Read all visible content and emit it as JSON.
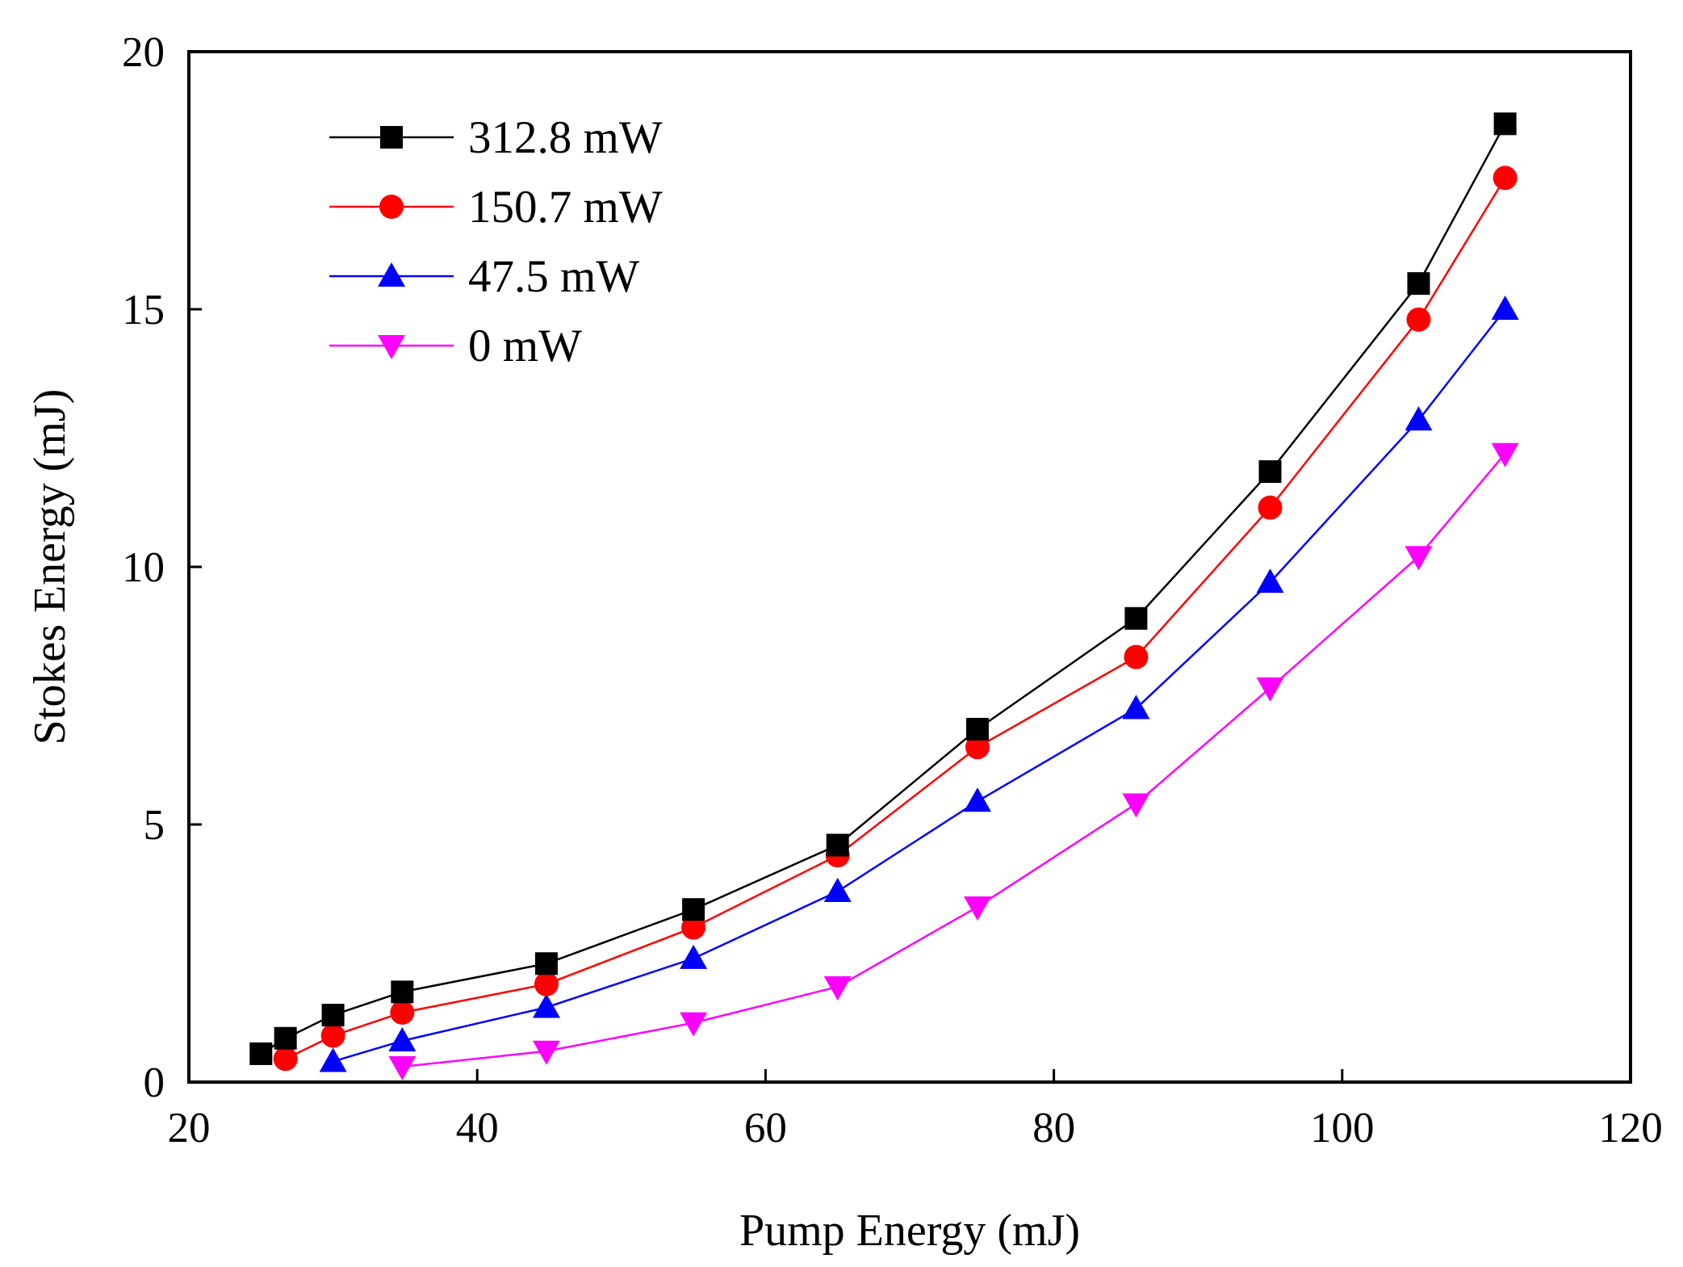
{
  "chart_data": {
    "type": "line",
    "title": "",
    "xlabel": "Pump Energy (mJ)",
    "ylabel": "Stokes Energy (mJ)",
    "xlim": [
      20,
      120
    ],
    "ylim": [
      0,
      20
    ],
    "xticks": [
      20,
      40,
      60,
      80,
      100,
      120
    ],
    "yticks": [
      0,
      5,
      10,
      15,
      20
    ],
    "grid": false,
    "legend_position": "top-left",
    "series": [
      {
        "name": "312.8 mW",
        "color": "#000000",
        "marker": "square",
        "x": [
          25,
          26.7,
          30,
          34.8,
          44.8,
          55,
          65,
          74.7,
          85.7,
          95,
          105.3,
          111.3
        ],
        "y": [
          0.55,
          0.85,
          1.3,
          1.75,
          2.3,
          3.35,
          4.6,
          6.85,
          9.0,
          11.85,
          15.5,
          18.6
        ]
      },
      {
        "name": "150.7 mW",
        "color": "#ff0000",
        "marker": "circle",
        "x": [
          26.7,
          30,
          34.8,
          44.8,
          55,
          65,
          74.7,
          85.7,
          95,
          105.3,
          111.3
        ],
        "y": [
          0.45,
          0.9,
          1.35,
          1.9,
          3.0,
          4.4,
          6.5,
          8.25,
          11.15,
          14.8,
          17.55
        ]
      },
      {
        "name": "47.5 mW",
        "color": "#0000ff",
        "marker": "triangle-up",
        "x": [
          30,
          34.8,
          44.8,
          55,
          65,
          74.7,
          85.7,
          95,
          105.3,
          111.3
        ],
        "y": [
          0.4,
          0.8,
          1.45,
          2.4,
          3.7,
          5.45,
          7.25,
          9.7,
          12.85,
          15.0
        ]
      },
      {
        "name": "0 mW",
        "color": "#ff00ff",
        "marker": "triangle-down",
        "x": [
          34.8,
          44.8,
          55,
          65,
          74.7,
          85.7,
          95,
          105.3,
          111.3
        ],
        "y": [
          0.3,
          0.6,
          1.15,
          1.85,
          3.4,
          5.4,
          7.65,
          10.2,
          12.2
        ]
      }
    ]
  }
}
